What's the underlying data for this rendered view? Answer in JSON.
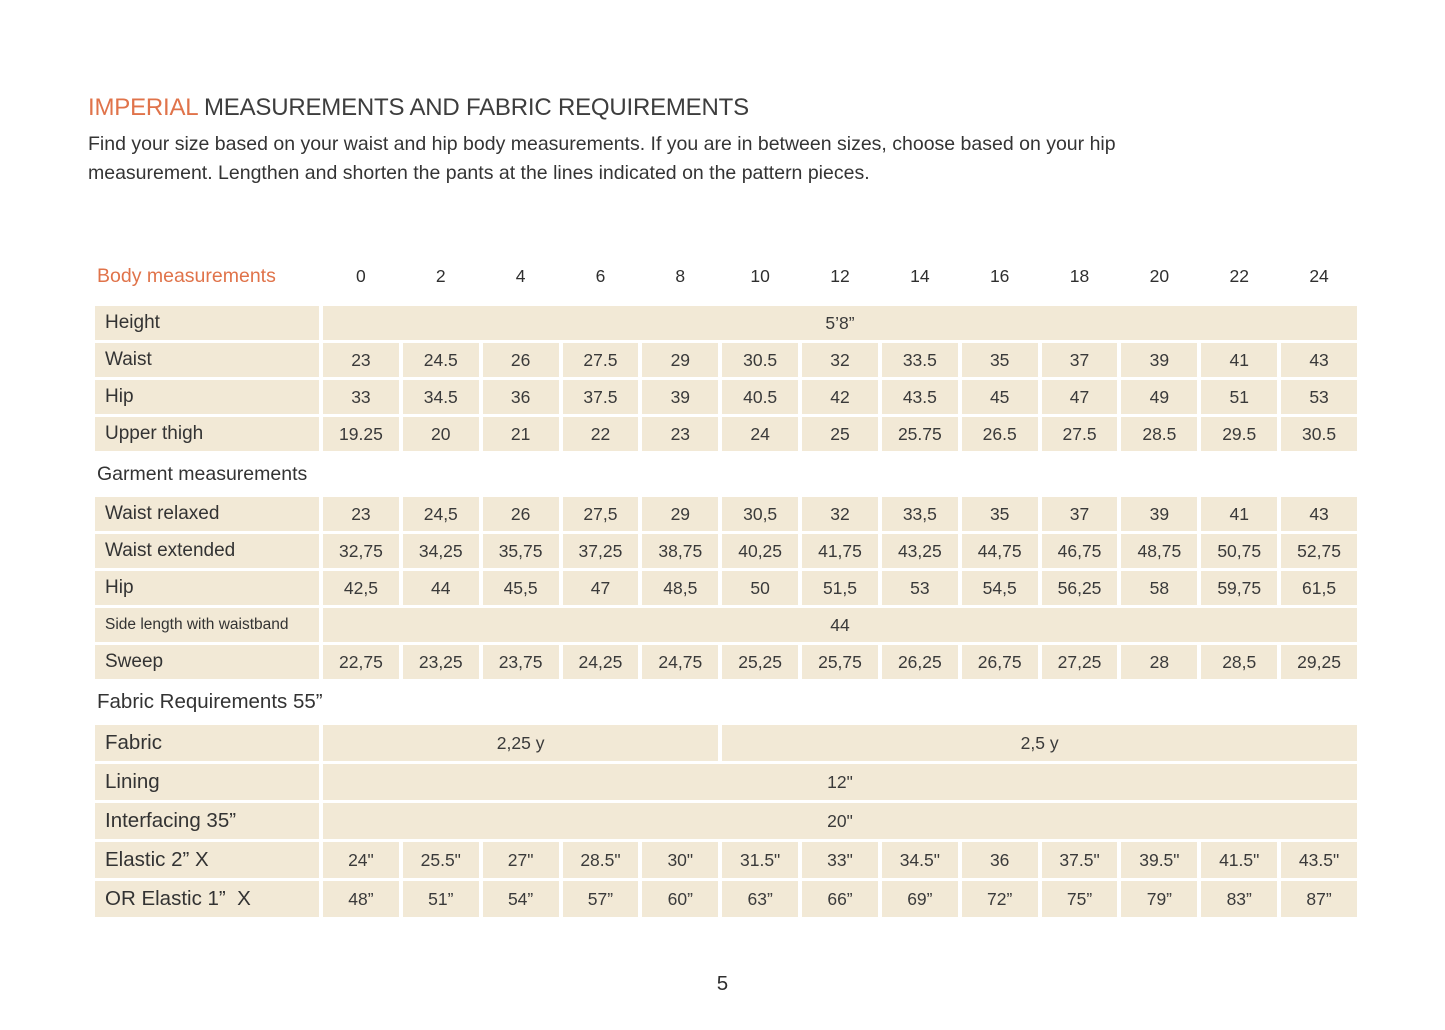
{
  "title": {
    "highlight": "IMPERIAL",
    "rest": " MEASUREMENTS AND FABRIC REQUIREMENTS"
  },
  "intro": "Find your size based on your waist and hip body measurements. If you are in between sizes, choose based on your hip\nmeasurement. Lengthen and shorten the pants at the lines indicated on the pattern pieces.",
  "page_number": "5",
  "colors": {
    "accent": "#E0734A",
    "cell_bg": "#F2E9D6",
    "text": "#3C3C3C"
  },
  "table": {
    "header": {
      "label": "Body measurements",
      "values": [
        "0",
        "2",
        "4",
        "6",
        "8",
        "10",
        "12",
        "14",
        "16",
        "18",
        "20",
        "22",
        "24"
      ]
    },
    "height": {
      "label": "Height",
      "value": "5’8”"
    },
    "waist_body": {
      "label": "Waist",
      "values": [
        "23",
        "24.5",
        "26",
        "27.5",
        "29",
        "30.5",
        "32",
        "33.5",
        "35",
        "37",
        "39",
        "41",
        "43"
      ]
    },
    "hip_body": {
      "label": "Hip",
      "values": [
        "33",
        "34.5",
        "36",
        "37.5",
        "39",
        "40.5",
        "42",
        "43.5",
        "45",
        "47",
        "49",
        "51",
        "53"
      ]
    },
    "upper_thigh": {
      "label": "Upper thigh",
      "values": [
        "19.25",
        "20",
        "21",
        "22",
        "23",
        "24",
        "25",
        "25.75",
        "26.5",
        "27.5",
        "28.5",
        "29.5",
        "30.5"
      ]
    },
    "garment_section": "Garment measurements",
    "waist_relaxed": {
      "label": "Waist relaxed",
      "values": [
        "23",
        "24,5",
        "26",
        "27,5",
        "29",
        "30,5",
        "32",
        "33,5",
        "35",
        "37",
        "39",
        "41",
        "43"
      ]
    },
    "waist_extended": {
      "label": "Waist extended",
      "values": [
        "32,75",
        "34,25",
        "35,75",
        "37,25",
        "38,75",
        "40,25",
        "41,75",
        "43,25",
        "44,75",
        "46,75",
        "48,75",
        "50,75",
        "52,75"
      ]
    },
    "hip_garment": {
      "label": "Hip",
      "values": [
        "42,5",
        "44",
        "45,5",
        "47",
        "48,5",
        "50",
        "51,5",
        "53",
        "54,5",
        "56,25",
        "58",
        "59,75",
        "61,5"
      ]
    },
    "side_length": {
      "label": "Side length with waistband",
      "value": "44"
    },
    "sweep": {
      "label": "Sweep",
      "values": [
        "22,75",
        "23,25",
        "23,75",
        "24,25",
        "24,75",
        "25,25",
        "25,75",
        "26,25",
        "26,75",
        "27,25",
        "28",
        "28,5",
        "29,25"
      ]
    },
    "fabric_section": "Fabric Requirements 55”",
    "fabric": {
      "label": "Fabric",
      "left": "2,25 y",
      "right": "2,5 y"
    },
    "lining": {
      "label": "Lining",
      "value": "12\""
    },
    "interfacing": {
      "label": "Interfacing 35”",
      "value": "20\""
    },
    "elastic2": {
      "label": "Elastic 2” X",
      "values": [
        "24\"",
        "25.5\"",
        "27\"",
        "28.5\"",
        "30\"",
        "31.5\"",
        "33\"",
        "34.5\"",
        "36",
        "37.5\"",
        "39.5\"",
        "41.5\"",
        "43.5\""
      ]
    },
    "elastic1": {
      "label": "OR Elastic 1”  X",
      "values": [
        "48”",
        "51”",
        "54”",
        "57”",
        "60”",
        "63”",
        "66”",
        "69”",
        "72”",
        "75”",
        "79”",
        "83”",
        "87”"
      ]
    }
  }
}
